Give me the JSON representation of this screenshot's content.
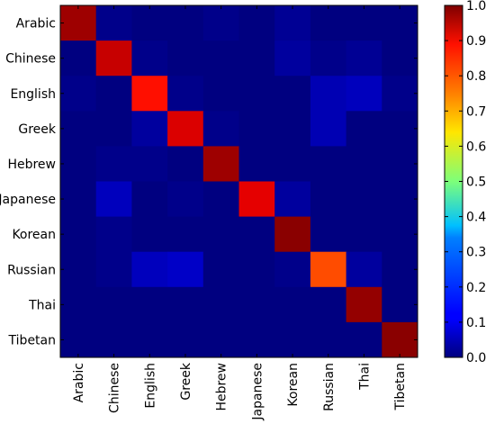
{
  "chart_data": {
    "type": "heatmap",
    "title": "",
    "xlabel": "",
    "ylabel": "",
    "categories": [
      "Arabic",
      "Chinese",
      "English",
      "Greek",
      "Hebrew",
      "Japanese",
      "Korean",
      "Russian",
      "Thai",
      "Tibetan"
    ],
    "rows": [
      "Arabic",
      "Chinese",
      "English",
      "Greek",
      "Hebrew",
      "Japanese",
      "Korean",
      "Russian",
      "Thai",
      "Tibetan"
    ],
    "values": [
      [
        0.97,
        0.01,
        0.0,
        0.0,
        0.01,
        0.0,
        0.02,
        0.0,
        0.0,
        0.0
      ],
      [
        0.0,
        0.93,
        0.01,
        0.0,
        0.0,
        0.0,
        0.03,
        0.01,
        0.02,
        0.0
      ],
      [
        0.01,
        0.0,
        0.86,
        0.01,
        0.0,
        0.0,
        0.0,
        0.05,
        0.06,
        0.01
      ],
      [
        0.0,
        0.0,
        0.03,
        0.91,
        0.01,
        0.0,
        0.0,
        0.05,
        0.0,
        0.0
      ],
      [
        0.0,
        0.01,
        0.01,
        0.0,
        0.97,
        0.0,
        0.0,
        0.0,
        0.0,
        0.0
      ],
      [
        0.0,
        0.06,
        0.0,
        0.01,
        0.0,
        0.9,
        0.03,
        0.0,
        0.0,
        0.0
      ],
      [
        0.0,
        0.01,
        0.0,
        0.0,
        0.0,
        0.0,
        0.99,
        0.0,
        0.0,
        0.0
      ],
      [
        0.0,
        0.01,
        0.06,
        0.07,
        0.0,
        0.0,
        0.01,
        0.8,
        0.03,
        0.0
      ],
      [
        0.0,
        0.0,
        0.0,
        0.0,
        0.0,
        0.0,
        0.0,
        0.0,
        0.98,
        0.0
      ],
      [
        0.0,
        0.0,
        0.0,
        0.0,
        0.0,
        0.0,
        0.0,
        0.0,
        0.0,
        0.99
      ]
    ],
    "colorbar": {
      "colormap": "jet",
      "range": [
        0.0,
        1.0
      ],
      "ticks": [
        "0.0",
        "0.1",
        "0.2",
        "0.3",
        "0.4",
        "0.5",
        "0.6",
        "0.7",
        "0.8",
        "0.9",
        "1.0"
      ]
    },
    "grid": false
  }
}
